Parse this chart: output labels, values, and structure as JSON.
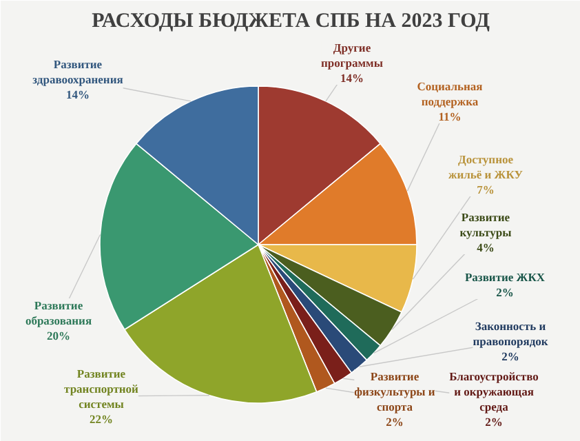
{
  "chart_data": {
    "type": "pie",
    "title": "РАСХОДЫ БЮДЖЕТА СПБ НА 2023 ГОД",
    "categories": [
      "Другие\nпрограммы",
      "Социальная\nподдержка",
      "Доступное\nжильё и ЖКУ",
      "Развитие\nкультуры",
      "Развитие ЖКХ",
      "Законность и\nправопорядок",
      "Благоустройство\nи окружающая\nсреда",
      "Развитие\nфизкультуры и\nспорта",
      "Развитие\nтранспортной\nсистемы",
      "Развитие\nобразования",
      "Развитие\nздравоохранения"
    ],
    "values": [
      14,
      11,
      7,
      4,
      2,
      2,
      2,
      2,
      22,
      20,
      14
    ],
    "colors": [
      "#9e3a30",
      "#e07b2a",
      "#e8b84a",
      "#4b5e1f",
      "#1f6b5a",
      "#2a4a78",
      "#7a1f1a",
      "#b0581e",
      "#8fa52a",
      "#3a9870",
      "#3f6d9e"
    ],
    "value_labels": [
      "14%",
      "11%",
      "7%",
      "4%",
      "2%",
      "2%",
      "2%",
      "2%",
      "22%",
      "20%",
      "14%"
    ]
  }
}
